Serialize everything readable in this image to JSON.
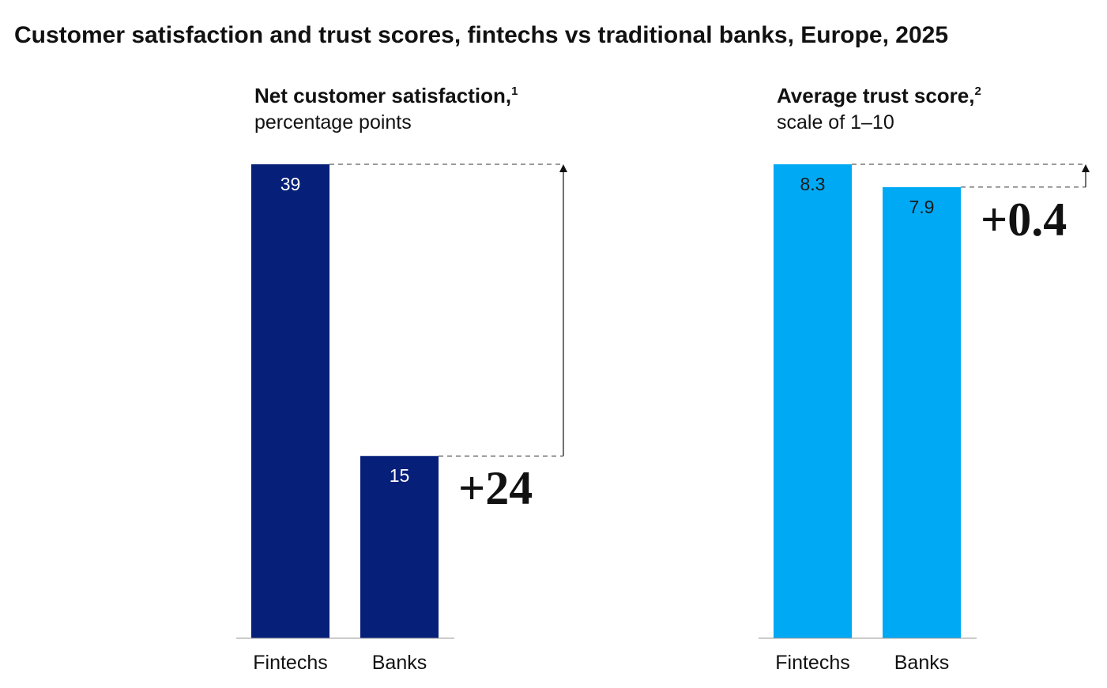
{
  "title": "Customer satisfaction and trust scores, fintechs vs traditional banks, Europe, 2025",
  "chart_data": [
    {
      "type": "bar",
      "title": "Net customer satisfaction,",
      "title_note": "1",
      "subtitle": "percentage points",
      "categories": [
        "Fintechs",
        "Banks"
      ],
      "values": [
        39,
        15
      ],
      "color": "#061f79",
      "value_label_color": "#ffffff",
      "ylim": [
        0,
        39
      ],
      "annotation": "+24"
    },
    {
      "type": "bar",
      "title": "Average trust score,",
      "title_note": "2",
      "subtitle": "scale of 1–10",
      "categories": [
        "Fintechs",
        "Banks"
      ],
      "values": [
        8.3,
        7.9
      ],
      "color": "#00a9f4",
      "value_label_color": "#1a1a1a",
      "ylim": [
        0,
        8.3
      ],
      "annotation": "+0.4"
    }
  ]
}
